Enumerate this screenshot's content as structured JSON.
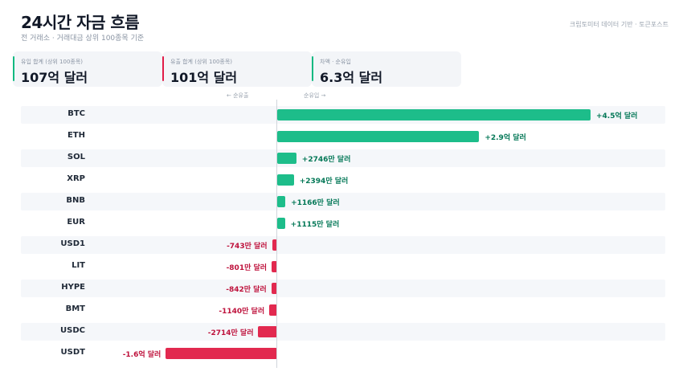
{
  "header": {
    "title": "24시간 자금 흐름",
    "subtitle": "전 거래소 · 거래대금 상위 100종목 기준",
    "source": "크립토미터 데이터 기반 · 토큰포스트"
  },
  "summary": {
    "inflow": {
      "label": "유입 합계 (상위 100종목)",
      "value": "107억 달러",
      "color": "#10b981"
    },
    "outflow": {
      "label": "유출 합계 (상위 100종목)",
      "value": "101억 달러",
      "color": "#e11d48"
    },
    "net": {
      "label": "차액 · 순유입",
      "value": "6.3억 달러",
      "color": "#10b981"
    }
  },
  "axis_labels": {
    "left": "← 순유출",
    "right": "순유입 →"
  },
  "colors": {
    "positive": "#1dbd8a",
    "negative": "#e2294f",
    "positive_text": "#047857",
    "negative_text": "#be123c"
  },
  "chart_data": {
    "type": "bar",
    "orientation": "horizontal",
    "unit": "USD",
    "categories": [
      "BTC",
      "ETH",
      "SOL",
      "XRP",
      "BNB",
      "EUR",
      "USD1",
      "LIT",
      "HYPE",
      "BMT",
      "USDC",
      "USDT"
    ],
    "values": [
      450000000,
      290000000,
      27460000,
      23940000,
      11660000,
      11150000,
      -7430000,
      -8010000,
      -8420000,
      -11400000,
      -27140000,
      -160000000
    ],
    "value_labels": [
      "+4.5억 달러",
      "+2.9억 달러",
      "+2746만 달러",
      "+2394만 달러",
      "+1166만 달러",
      "+1115만 달러",
      "-743만 달러",
      "-801만 달러",
      "-842만 달러",
      "-1140만 달러",
      "-2714만 달러",
      "-1.6억 달러"
    ],
    "grid": false
  }
}
